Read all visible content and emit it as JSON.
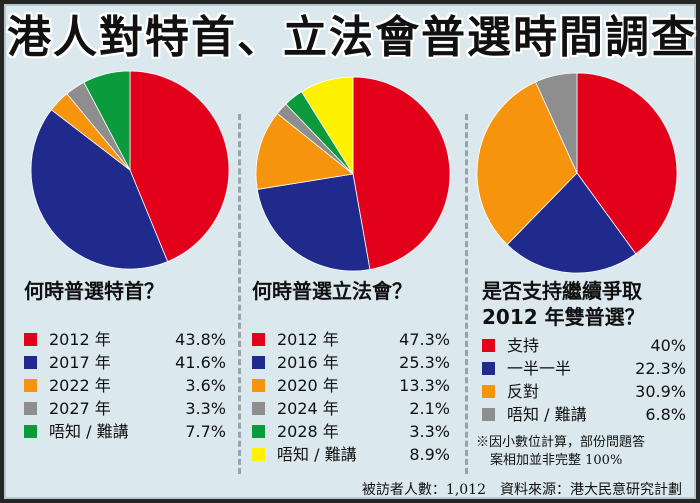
{
  "title": "港人對特首、立法會普選時間調查",
  "chart_data": [
    {
      "type": "pie",
      "title": "何時普選特首？",
      "categories": [
        "2012 年",
        "2017 年",
        "2022 年",
        "2027 年",
        "唔知 / 難講"
      ],
      "values": [
        43.8,
        41.6,
        3.6,
        3.3,
        7.7
      ],
      "value_labels": [
        "43.8%",
        "41.6%",
        "3.6%",
        "3.3%",
        "7.7%"
      ],
      "colors": [
        "#e3001b",
        "#1f2a8c",
        "#f7940e",
        "#8e8e8e",
        "#0b9a3c"
      ]
    },
    {
      "type": "pie",
      "title": "何時普選立法會？",
      "categories": [
        "2012 年",
        "2016 年",
        "2020 年",
        "2024 年",
        "2028 年",
        "唔知 / 難講"
      ],
      "values": [
        47.3,
        25.3,
        13.3,
        2.1,
        3.3,
        8.9
      ],
      "value_labels": [
        "47.3%",
        "25.3%",
        "13.3%",
        "2.1%",
        "3.3%",
        "8.9%"
      ],
      "colors": [
        "#e3001b",
        "#1f2a8c",
        "#f7940e",
        "#8e8e8e",
        "#0b9a3c",
        "#fff200"
      ]
    },
    {
      "type": "pie",
      "title": "是否支持繼續爭取 2012 年雙普選？",
      "categories": [
        "支持",
        "一半一半",
        "反對",
        "唔知 / 難講"
      ],
      "values": [
        40,
        22.3,
        30.9,
        6.8
      ],
      "value_labels": [
        "40%",
        "22.3%",
        "30.9%",
        "6.8%"
      ],
      "colors": [
        "#e3001b",
        "#1f2a8c",
        "#f7940e",
        "#8e8e8e"
      ]
    }
  ],
  "charts_text": [
    {
      "question_lines": [
        "何時普選特首？"
      ]
    },
    {
      "question_lines": [
        "何時普選立法會？"
      ]
    },
    {
      "question_lines": [
        "是否支持繼續爭取",
        "2012 年雙普選？"
      ]
    }
  ],
  "note": {
    "line1": "※因小數位計算，部份問題答",
    "line2": "案相加並非完整 100%"
  },
  "footer": "被訪者人數：1,012　資料來源：港大民意研究計劃"
}
